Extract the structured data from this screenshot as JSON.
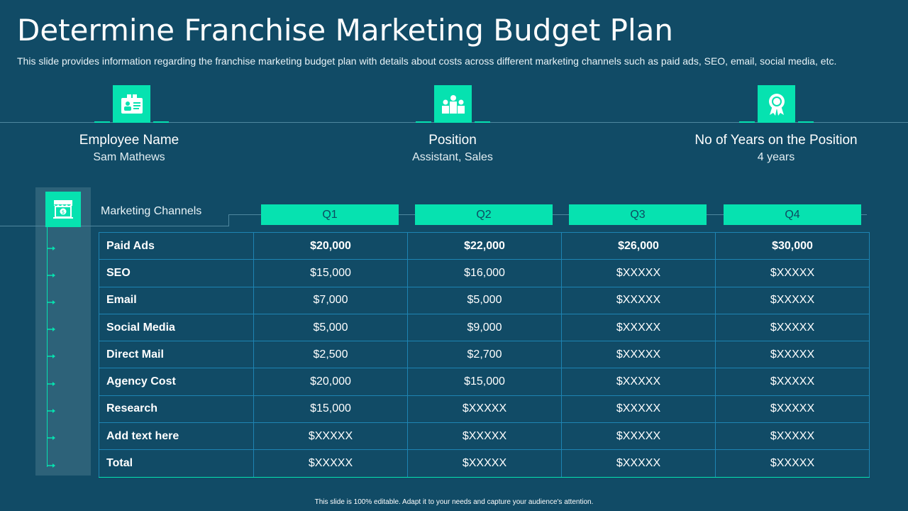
{
  "header": {
    "title": "Determine Franchise Marketing Budget Plan",
    "subtitle": "This slide provides information regarding the franchise marketing budget plan with details about costs across different marketing channels such as paid ads, SEO, email, social media, etc."
  },
  "info": [
    {
      "icon": "id-card-icon",
      "label": "Employee Name",
      "value": "Sam Mathews"
    },
    {
      "icon": "team-icon",
      "label": "Position",
      "value": "Assistant, Sales"
    },
    {
      "icon": "award-ribbon-icon",
      "label": "No of Years on the Position",
      "value": "4 years"
    }
  ],
  "table": {
    "channels_label": "Marketing Channels",
    "quarters": [
      "Q1",
      "Q2",
      "Q3",
      "Q4"
    ],
    "rows": [
      {
        "label": "Paid Ads",
        "values": [
          "$20,000",
          "$22,000",
          "$26,000",
          "$30,000"
        ]
      },
      {
        "label": "SEO",
        "values": [
          "$15,000",
          "$16,000",
          "$XXXXX",
          "$XXXXX"
        ]
      },
      {
        "label": "Email",
        "values": [
          "$7,000",
          "$5,000",
          "$XXXXX",
          "$XXXXX"
        ]
      },
      {
        "label": "Social Media",
        "values": [
          "$5,000",
          "$9,000",
          "$XXXXX",
          "$XXXXX"
        ]
      },
      {
        "label": "Direct Mail",
        "values": [
          "$2,500",
          "$2,700",
          "$XXXXX",
          "$XXXXX"
        ]
      },
      {
        "label": "Agency Cost",
        "values": [
          "$20,000",
          "$15,000",
          "$XXXXX",
          "$XXXXX"
        ]
      },
      {
        "label": "Research",
        "values": [
          "$15,000",
          "$XXXXX",
          "$XXXXX",
          "$XXXXX"
        ]
      },
      {
        "label": "Add text here",
        "values": [
          "$XXXXX",
          "$XXXXX",
          "$XXXXX",
          "$XXXXX"
        ]
      },
      {
        "label": "Total",
        "values": [
          "$XXXXX",
          "$XXXXX",
          "$XXXXX",
          "$XXXXX"
        ]
      }
    ]
  },
  "footer": "This slide is 100% editable. Adapt it to your needs and capture your audience's attention.",
  "colors": {
    "background": "#114b66",
    "accent": "#06e2b0",
    "sidebar": "#2d6279"
  }
}
